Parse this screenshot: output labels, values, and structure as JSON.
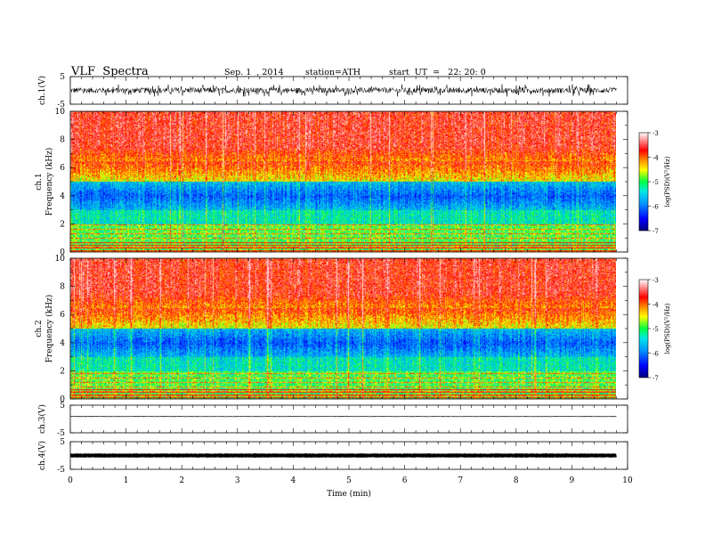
{
  "header": {
    "title": "VLF  Spectra",
    "date": "Sep. 1  , 2014",
    "station": "station=ATH",
    "start": "start  UT  =   22: 20: 0"
  },
  "chart_data": [
    {
      "type": "line",
      "name": "ch1-waveform",
      "ylabel": "ch.1(V)",
      "ylim": [
        -5,
        5
      ],
      "yticks": [
        "5",
        "-5"
      ],
      "x_range_min": [
        0,
        9.8
      ],
      "description_level": "dense noisy waveform centered near 0 V with amplitude about ±1.5 V",
      "color": "#000000"
    },
    {
      "type": "heatmap",
      "name": "ch1-spectrogram",
      "ylabel": "ch.1\nFrequency  (kHz)",
      "ylim": [
        0,
        10
      ],
      "yticks": [
        "0",
        "2",
        "4",
        "6",
        "8",
        "10"
      ],
      "x_range_min": [
        0,
        9.8
      ],
      "colorbar": {
        "label": "log(PSD)(V²/Hz)",
        "range": [
          -7,
          -3
        ],
        "ticks": [
          "-3",
          "-4",
          "-5",
          "-6",
          "-7"
        ]
      }
    },
    {
      "type": "heatmap",
      "name": "ch2-spectrogram",
      "ylabel": "ch.2\nFrequency  (kHz)",
      "ylim": [
        0,
        10
      ],
      "yticks": [
        "0",
        "2",
        "4",
        "6",
        "8",
        "10"
      ],
      "x_range_min": [
        0,
        9.8
      ],
      "colorbar": {
        "label": "log(PSD)(V²/Hz)",
        "range": [
          -7,
          -3
        ],
        "ticks": [
          "-3",
          "-4",
          "-5",
          "-6",
          "-7"
        ]
      }
    },
    {
      "type": "line",
      "name": "ch3-waveform",
      "ylabel": "ch.3(V)",
      "ylim": [
        -5,
        5
      ],
      "yticks": [
        "5",
        "-5"
      ],
      "values_description": "flat trace near +1 V",
      "level": 0.9,
      "x_range_min": [
        0,
        9.8
      ]
    },
    {
      "type": "line",
      "name": "ch4-waveform",
      "ylabel": "ch.4(V)",
      "ylim": [
        -5,
        5
      ],
      "yticks": [
        "5",
        "-5"
      ],
      "values_description": "thick flat trace near 0 V",
      "level": 0.0,
      "x_range_min": [
        0,
        9.8
      ]
    }
  ],
  "xaxis": {
    "label": "Time  (min)",
    "range": [
      0,
      10
    ],
    "ticks": [
      "0",
      "1",
      "2",
      "3",
      "4",
      "5",
      "6",
      "7",
      "8",
      "9",
      "10"
    ]
  },
  "colors": {
    "scale": [
      "#00007a",
      "#0000ff",
      "#0090ff",
      "#00e0e0",
      "#00ff40",
      "#ffff00",
      "#ff8c00",
      "#ff0000",
      "#ffffff"
    ]
  }
}
